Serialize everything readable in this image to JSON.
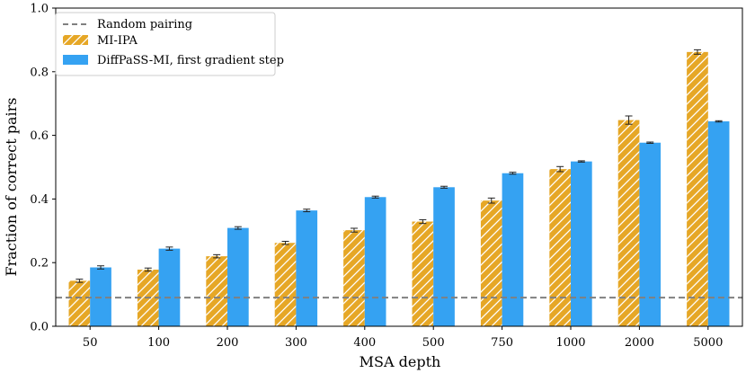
{
  "chart_data": {
    "type": "bar",
    "title": "",
    "xlabel": "MSA depth",
    "ylabel": "Fraction of correct pairs",
    "ylim": [
      0,
      1.0
    ],
    "yticks": [
      "0.0",
      "0.2",
      "0.4",
      "0.6",
      "0.8",
      "1.0"
    ],
    "categories": [
      "50",
      "100",
      "200",
      "300",
      "400",
      "500",
      "750",
      "1000",
      "2000",
      "5000"
    ],
    "series": [
      {
        "name": "MI-IPA",
        "color": "#e6a726",
        "hatch": true,
        "values": [
          0.143,
          0.178,
          0.22,
          0.262,
          0.302,
          0.329,
          0.395,
          0.494,
          0.648,
          0.862
        ],
        "errors": [
          0.005,
          0.005,
          0.005,
          0.005,
          0.006,
          0.006,
          0.008,
          0.008,
          0.013,
          0.007
        ]
      },
      {
        "name": "DiffPaSS-MI, first gradient step",
        "color": "#35a2f2",
        "hatch": false,
        "values": [
          0.185,
          0.244,
          0.309,
          0.364,
          0.406,
          0.437,
          0.481,
          0.518,
          0.577,
          0.644
        ],
        "errors": [
          0.005,
          0.005,
          0.004,
          0.004,
          0.003,
          0.003,
          0.003,
          0.002,
          0.002,
          0.002
        ]
      }
    ],
    "reference_line": {
      "name": "Random pairing",
      "value": 0.09,
      "style": "dashed",
      "color": "#808080"
    },
    "legend_position": "top-left",
    "grid": false
  }
}
